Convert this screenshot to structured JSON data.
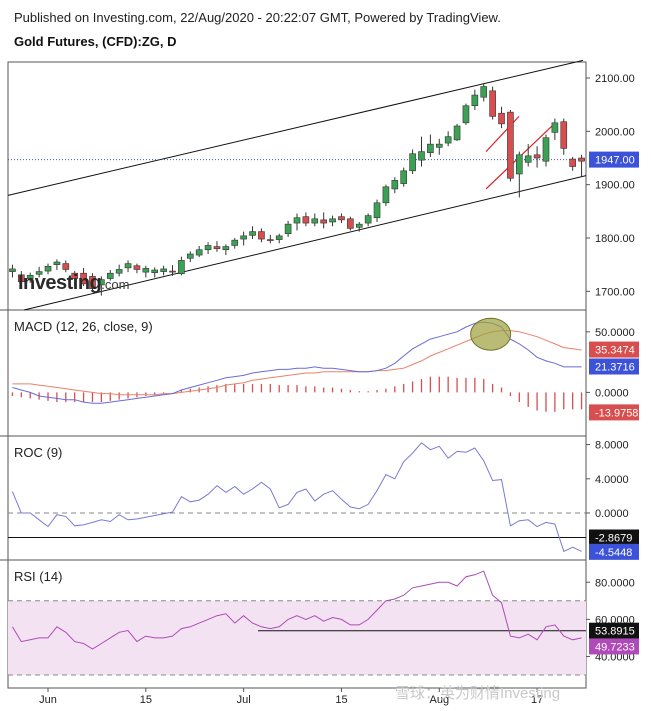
{
  "header": {
    "published": "Published on Investing.com, 22/Aug/2020 - 20:22:07 GMT, Powered by TradingView.",
    "symbol": "Gold Futures, (CFD):ZG, D"
  },
  "watermark": {
    "brand": "Investing",
    "suffix": ".com"
  },
  "credit": "雪球：英为财情Investing",
  "colors": {
    "up": "#3ca253",
    "down": "#d84d4d",
    "macd_line": "#6b6bd6",
    "signal_line": "#e8836a",
    "roc_line": "#7a7ad6",
    "rsi_line": "#b04ab8",
    "rsi_band": "#f3e3f2",
    "channel": "#111111",
    "flag": "#dd2222",
    "last_price_tag": "#3b52d9",
    "highlight": "#9c9f3a"
  },
  "chart_data": [
    {
      "type": "candlestick",
      "title": "Gold Futures, (CFD):ZG, D",
      "x_tick_labels": [
        "Jun",
        "15",
        "Jul",
        "15",
        "Aug",
        "17"
      ],
      "y_tick_labels": [
        "2100.00",
        "2000.00",
        "1900.00",
        "1800.00",
        "1700.00"
      ],
      "ylim": [
        1665,
        2130
      ],
      "last_price": "1947.00",
      "ohlc": [
        {
          "o": 1737,
          "h": 1750,
          "l": 1726,
          "c": 1742
        },
        {
          "o": 1731,
          "h": 1738,
          "l": 1712,
          "c": 1718
        },
        {
          "o": 1724,
          "h": 1735,
          "l": 1716,
          "c": 1730
        },
        {
          "o": 1732,
          "h": 1746,
          "l": 1726,
          "c": 1737
        },
        {
          "o": 1738,
          "h": 1752,
          "l": 1732,
          "c": 1747
        },
        {
          "o": 1750,
          "h": 1760,
          "l": 1740,
          "c": 1755
        },
        {
          "o": 1752,
          "h": 1758,
          "l": 1736,
          "c": 1741
        },
        {
          "o": 1734,
          "h": 1738,
          "l": 1710,
          "c": 1724
        },
        {
          "o": 1734,
          "h": 1744,
          "l": 1710,
          "c": 1714
        },
        {
          "o": 1728,
          "h": 1734,
          "l": 1700,
          "c": 1705
        },
        {
          "o": 1712,
          "h": 1728,
          "l": 1692,
          "c": 1722
        },
        {
          "o": 1724,
          "h": 1740,
          "l": 1720,
          "c": 1734
        },
        {
          "o": 1734,
          "h": 1750,
          "l": 1728,
          "c": 1741
        },
        {
          "o": 1744,
          "h": 1758,
          "l": 1736,
          "c": 1752
        },
        {
          "o": 1748,
          "h": 1752,
          "l": 1734,
          "c": 1741
        },
        {
          "o": 1736,
          "h": 1748,
          "l": 1726,
          "c": 1743
        },
        {
          "o": 1735,
          "h": 1745,
          "l": 1726,
          "c": 1740
        },
        {
          "o": 1737,
          "h": 1748,
          "l": 1730,
          "c": 1742
        },
        {
          "o": 1738,
          "h": 1749,
          "l": 1729,
          "c": 1736
        },
        {
          "o": 1733,
          "h": 1765,
          "l": 1730,
          "c": 1758
        },
        {
          "o": 1762,
          "h": 1775,
          "l": 1755,
          "c": 1770
        },
        {
          "o": 1768,
          "h": 1785,
          "l": 1764,
          "c": 1778
        },
        {
          "o": 1778,
          "h": 1792,
          "l": 1770,
          "c": 1786
        },
        {
          "o": 1784,
          "h": 1794,
          "l": 1774,
          "c": 1780
        },
        {
          "o": 1778,
          "h": 1788,
          "l": 1768,
          "c": 1784
        },
        {
          "o": 1786,
          "h": 1800,
          "l": 1780,
          "c": 1796
        },
        {
          "o": 1798,
          "h": 1812,
          "l": 1786,
          "c": 1804
        },
        {
          "o": 1805,
          "h": 1822,
          "l": 1798,
          "c": 1812
        },
        {
          "o": 1812,
          "h": 1818,
          "l": 1792,
          "c": 1798
        },
        {
          "o": 1797,
          "h": 1806,
          "l": 1790,
          "c": 1796
        },
        {
          "o": 1797,
          "h": 1808,
          "l": 1790,
          "c": 1804
        },
        {
          "o": 1808,
          "h": 1832,
          "l": 1802,
          "c": 1826
        },
        {
          "o": 1828,
          "h": 1846,
          "l": 1814,
          "c": 1838
        },
        {
          "o": 1840,
          "h": 1848,
          "l": 1822,
          "c": 1828
        },
        {
          "o": 1828,
          "h": 1846,
          "l": 1822,
          "c": 1836
        },
        {
          "o": 1834,
          "h": 1848,
          "l": 1818,
          "c": 1828
        },
        {
          "o": 1830,
          "h": 1842,
          "l": 1822,
          "c": 1836
        },
        {
          "o": 1840,
          "h": 1846,
          "l": 1828,
          "c": 1834
        },
        {
          "o": 1836,
          "h": 1840,
          "l": 1814,
          "c": 1818
        },
        {
          "o": 1820,
          "h": 1830,
          "l": 1812,
          "c": 1826
        },
        {
          "o": 1828,
          "h": 1846,
          "l": 1822,
          "c": 1842
        },
        {
          "o": 1838,
          "h": 1872,
          "l": 1830,
          "c": 1866
        },
        {
          "o": 1866,
          "h": 1900,
          "l": 1860,
          "c": 1896
        },
        {
          "o": 1892,
          "h": 1914,
          "l": 1884,
          "c": 1908
        },
        {
          "o": 1902,
          "h": 1932,
          "l": 1896,
          "c": 1926
        },
        {
          "o": 1926,
          "h": 1966,
          "l": 1920,
          "c": 1958
        },
        {
          "o": 1946,
          "h": 1990,
          "l": 1934,
          "c": 1962
        },
        {
          "o": 1960,
          "h": 1994,
          "l": 1952,
          "c": 1976
        },
        {
          "o": 1970,
          "h": 1986,
          "l": 1956,
          "c": 1976
        },
        {
          "o": 1978,
          "h": 2000,
          "l": 1972,
          "c": 1990
        },
        {
          "o": 1984,
          "h": 2014,
          "l": 1982,
          "c": 2010
        },
        {
          "o": 2016,
          "h": 2052,
          "l": 2012,
          "c": 2048
        },
        {
          "o": 2048,
          "h": 2078,
          "l": 2040,
          "c": 2068
        },
        {
          "o": 2064,
          "h": 2090,
          "l": 2056,
          "c": 2084
        },
        {
          "o": 2076,
          "h": 2084,
          "l": 2022,
          "c": 2028
        },
        {
          "o": 2034,
          "h": 2046,
          "l": 2006,
          "c": 2014
        },
        {
          "o": 2036,
          "h": 2040,
          "l": 1906,
          "c": 1912
        },
        {
          "o": 1920,
          "h": 1962,
          "l": 1876,
          "c": 1956
        },
        {
          "o": 1942,
          "h": 1976,
          "l": 1934,
          "c": 1954
        },
        {
          "o": 1956,
          "h": 1972,
          "l": 1932,
          "c": 1950
        },
        {
          "o": 1944,
          "h": 1994,
          "l": 1934,
          "c": 1988
        },
        {
          "o": 1998,
          "h": 2024,
          "l": 1984,
          "c": 2016
        },
        {
          "o": 2018,
          "h": 2024,
          "l": 1956,
          "c": 1968
        },
        {
          "o": 1948,
          "h": 1952,
          "l": 1926,
          "c": 1934
        },
        {
          "o": 1950,
          "h": 1956,
          "l": 1916,
          "c": 1944
        }
      ]
    },
    {
      "type": "line",
      "title": "MACD (12, 26, close, 9)",
      "ylim": [
        -36,
        68
      ],
      "y_tick_labels": [
        "50.0000",
        "0.0000"
      ],
      "last_values": {
        "signal": "35.3474",
        "macd": "21.3716",
        "histogram": "-13.9758"
      },
      "series": [
        {
          "values": [
            4,
            2,
            0,
            -3,
            -4,
            -5,
            -6,
            -6,
            -8,
            -9,
            -9,
            -8,
            -7,
            -6,
            -5,
            -4,
            -3,
            -2,
            -1,
            2,
            4,
            6,
            8,
            10,
            12,
            13,
            14,
            16,
            17,
            18,
            19,
            19,
            20,
            20,
            21,
            20,
            20,
            19,
            18,
            17,
            17,
            18,
            20,
            24,
            30,
            36,
            40,
            44,
            46,
            48,
            50,
            54,
            57,
            58,
            57,
            54,
            44,
            40,
            35,
            29,
            26,
            24,
            21,
            21,
            21
          ]
        },
        {
          "values": [
            7,
            7,
            7,
            6,
            5,
            4,
            3,
            2,
            1,
            0,
            -1,
            -1,
            -2,
            -2,
            -2,
            -2,
            -2,
            -1,
            -1,
            0,
            1,
            2,
            3,
            4,
            6,
            7,
            8,
            10,
            11,
            12,
            13,
            14,
            15,
            16,
            16,
            17,
            17,
            17,
            17,
            17,
            17,
            18,
            18,
            19,
            20,
            23,
            26,
            30,
            33,
            36,
            39,
            42,
            45,
            48,
            50,
            51,
            51,
            50,
            48,
            46,
            43,
            40,
            37,
            36,
            35
          ]
        },
        {
          "values": [
            -3,
            -4,
            -5,
            -6,
            -7,
            -8,
            -8,
            -8,
            -8,
            -8,
            -8,
            -7,
            -6,
            -5,
            -4,
            -3,
            -2,
            -1,
            0,
            2,
            3,
            4,
            5,
            6,
            7,
            7,
            7,
            7,
            7,
            7,
            6,
            6,
            6,
            5,
            5,
            4,
            4,
            3,
            2,
            1,
            1,
            2,
            3,
            5,
            7,
            9,
            11,
            13,
            13,
            13,
            12,
            12,
            12,
            11,
            7,
            4,
            -3,
            -8,
            -12,
            -15,
            -16,
            -16,
            -14,
            -14,
            -14
          ]
        }
      ]
    },
    {
      "type": "line",
      "title": "ROC (9)",
      "ylim": [
        -5.5,
        9
      ],
      "y_tick_labels": [
        "8.0000",
        "4.0000",
        "0.0000"
      ],
      "reference_value": "-2.8679",
      "last_value": "-4.5448",
      "series": [
        {
          "values": [
            2.5,
            0,
            0,
            -0.8,
            -1.6,
            -0.2,
            -0.4,
            -1.5,
            -1.4,
            -1.1,
            -0.8,
            -1.0,
            -0.2,
            -0.8,
            -0.7,
            -0.5,
            -0.3,
            -0.1,
            0.1,
            1.9,
            1.3,
            1.5,
            2.2,
            3.2,
            2.4,
            3.1,
            2.2,
            2.8,
            3.6,
            2.8,
            0.6,
            1.0,
            2.4,
            2.8,
            1.4,
            2.2,
            2.6,
            1.6,
            0.7,
            0.5,
            1.0,
            2.6,
            4.5,
            4.0,
            6.0,
            7.0,
            8.2,
            7.4,
            7.8,
            6.4,
            7.2,
            7.1,
            7.6,
            6.1,
            3.8,
            3.9,
            -1.5,
            -0.9,
            -0.8,
            -1.6,
            -1.1,
            -1.3,
            -4.5,
            -4.0,
            -4.5
          ]
        }
      ]
    },
    {
      "type": "line",
      "title": "RSI (14)",
      "ylim": [
        23,
        92
      ],
      "y_tick_labels": [
        "80.0000",
        "60.0000",
        "40.0000"
      ],
      "reference_value": "53.8915",
      "last_value": "49.7233",
      "series": [
        {
          "values": [
            56,
            48,
            49,
            50,
            50,
            56,
            53,
            48,
            47,
            44,
            47,
            50,
            53,
            54,
            48,
            51,
            50,
            50,
            51,
            55,
            56,
            58,
            60,
            62,
            63,
            58,
            62,
            58,
            56,
            55,
            56,
            60,
            62,
            60,
            62,
            59,
            61,
            60,
            57,
            57,
            60,
            65,
            70,
            71,
            73,
            77,
            78,
            79,
            80,
            80,
            78,
            83,
            84,
            86,
            73,
            69,
            51,
            50,
            52,
            49,
            56,
            57,
            51,
            49,
            50
          ]
        }
      ]
    }
  ]
}
